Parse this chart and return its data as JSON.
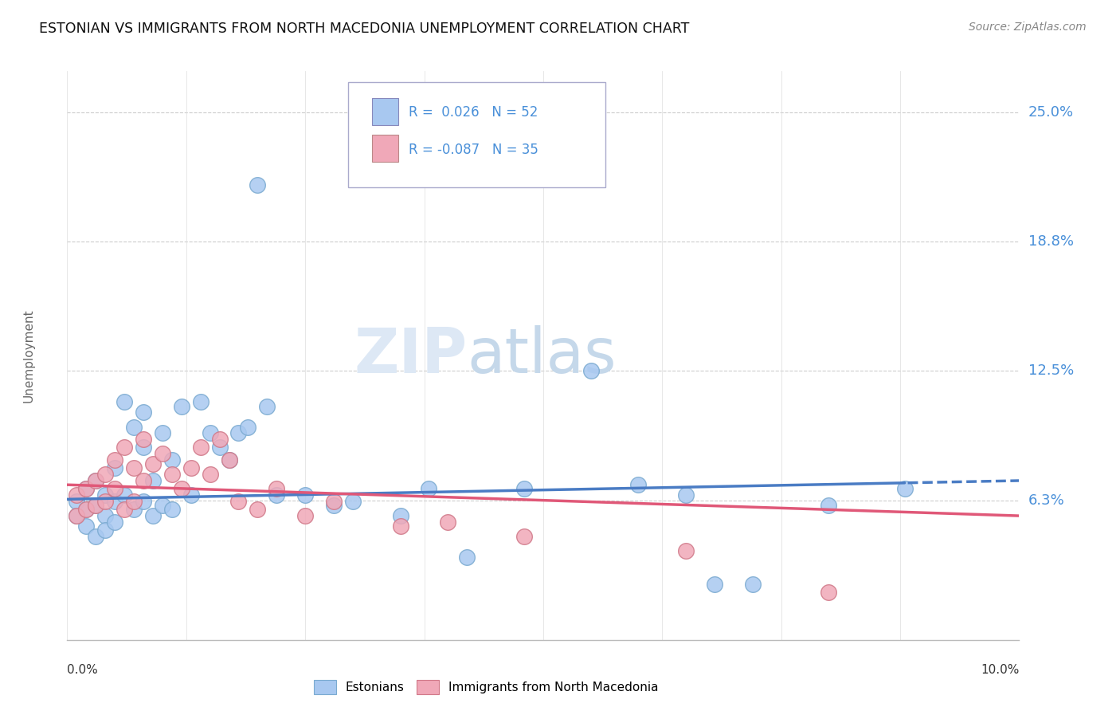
{
  "title": "ESTONIAN VS IMMIGRANTS FROM NORTH MACEDONIA UNEMPLOYMENT CORRELATION CHART",
  "source": "Source: ZipAtlas.com",
  "ylabel": "Unemployment",
  "color_blue": "#a8c8f0",
  "color_blue_edge": "#7aaad0",
  "color_pink": "#f0a8b8",
  "color_pink_edge": "#d07888",
  "color_blue_text": "#4a90d9",
  "color_pink_text": "#4a90d9",
  "color_line_blue": "#4a7cc4",
  "color_line_pink": "#e05878",
  "xlim": [
    0.0,
    0.1
  ],
  "ylim": [
    -0.005,
    0.27
  ],
  "ytick_positions": [
    0.0625,
    0.125,
    0.1875,
    0.25
  ],
  "ytick_labels": [
    "6.3%",
    "12.5%",
    "18.8%",
    "25.0%"
  ],
  "estonians_x": [
    0.001,
    0.001,
    0.002,
    0.002,
    0.002,
    0.003,
    0.003,
    0.003,
    0.004,
    0.004,
    0.004,
    0.005,
    0.005,
    0.005,
    0.006,
    0.006,
    0.007,
    0.007,
    0.008,
    0.008,
    0.008,
    0.009,
    0.009,
    0.01,
    0.01,
    0.011,
    0.011,
    0.012,
    0.013,
    0.014,
    0.015,
    0.016,
    0.017,
    0.018,
    0.019,
    0.02,
    0.021,
    0.022,
    0.025,
    0.028,
    0.03,
    0.035,
    0.038,
    0.042,
    0.048,
    0.055,
    0.06,
    0.065,
    0.068,
    0.072,
    0.08,
    0.088
  ],
  "estonians_y": [
    0.062,
    0.055,
    0.068,
    0.058,
    0.05,
    0.072,
    0.06,
    0.045,
    0.065,
    0.055,
    0.048,
    0.078,
    0.062,
    0.052,
    0.11,
    0.065,
    0.098,
    0.058,
    0.105,
    0.088,
    0.062,
    0.072,
    0.055,
    0.095,
    0.06,
    0.082,
    0.058,
    0.108,
    0.065,
    0.11,
    0.095,
    0.088,
    0.082,
    0.095,
    0.098,
    0.215,
    0.108,
    0.065,
    0.065,
    0.06,
    0.062,
    0.055,
    0.068,
    0.035,
    0.068,
    0.125,
    0.07,
    0.065,
    0.022,
    0.022,
    0.06,
    0.068
  ],
  "macedonia_x": [
    0.001,
    0.001,
    0.002,
    0.002,
    0.003,
    0.003,
    0.004,
    0.004,
    0.005,
    0.005,
    0.006,
    0.006,
    0.007,
    0.007,
    0.008,
    0.008,
    0.009,
    0.01,
    0.011,
    0.012,
    0.013,
    0.014,
    0.015,
    0.016,
    0.017,
    0.018,
    0.02,
    0.022,
    0.025,
    0.028,
    0.035,
    0.04,
    0.048,
    0.065,
    0.08
  ],
  "macedonia_y": [
    0.065,
    0.055,
    0.068,
    0.058,
    0.072,
    0.06,
    0.075,
    0.062,
    0.082,
    0.068,
    0.088,
    0.058,
    0.078,
    0.062,
    0.092,
    0.072,
    0.08,
    0.085,
    0.075,
    0.068,
    0.078,
    0.088,
    0.075,
    0.092,
    0.082,
    0.062,
    0.058,
    0.068,
    0.055,
    0.062,
    0.05,
    0.052,
    0.045,
    0.038,
    0.018
  ]
}
